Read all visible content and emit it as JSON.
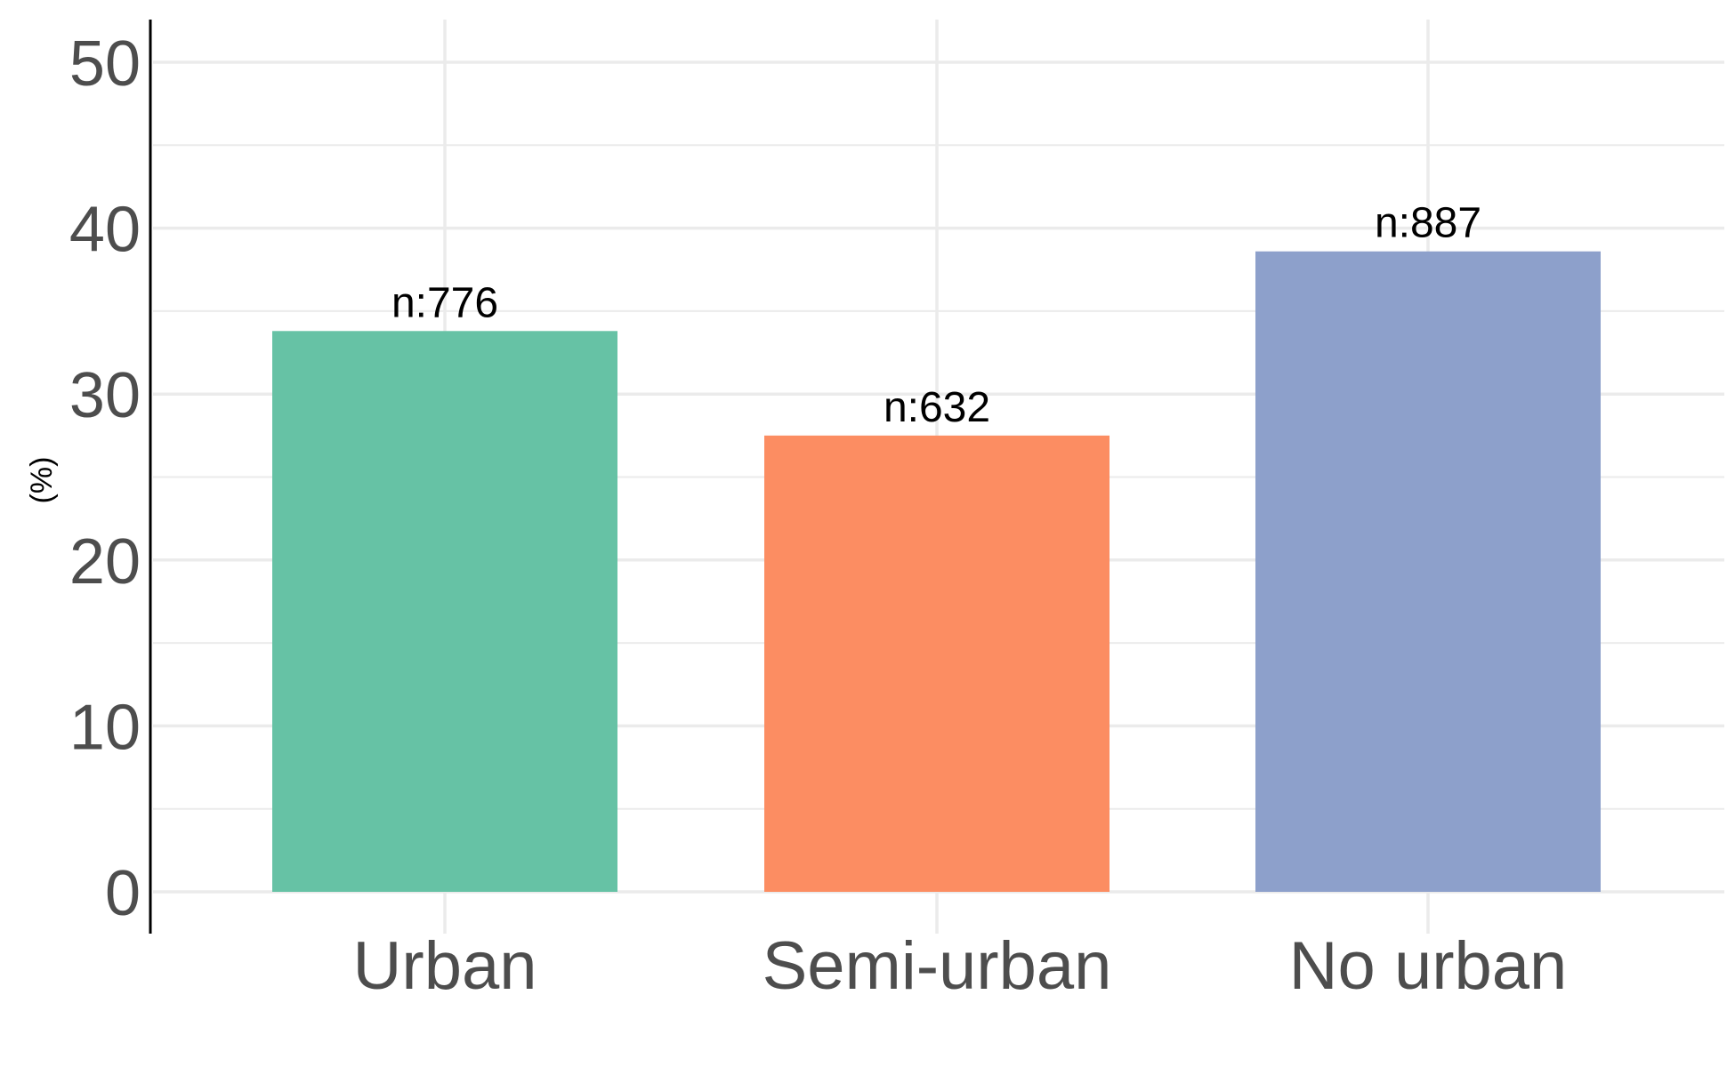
{
  "chart_data": {
    "type": "bar",
    "categories": [
      "Urban",
      "Semi-urban",
      "No urban"
    ],
    "values": [
      33.8,
      27.5,
      38.6
    ],
    "data_labels": [
      "n:776",
      "n:632",
      "n:887"
    ],
    "colors": [
      "#66c2a5",
      "#fc8d62",
      "#8da0cb"
    ],
    "title": "",
    "xlabel": "",
    "ylabel": "(%)",
    "ylim": [
      0,
      50
    ],
    "yticks": [
      "0",
      "10",
      "20",
      "30",
      "40",
      "50"
    ],
    "grid": true,
    "legend": "none"
  }
}
